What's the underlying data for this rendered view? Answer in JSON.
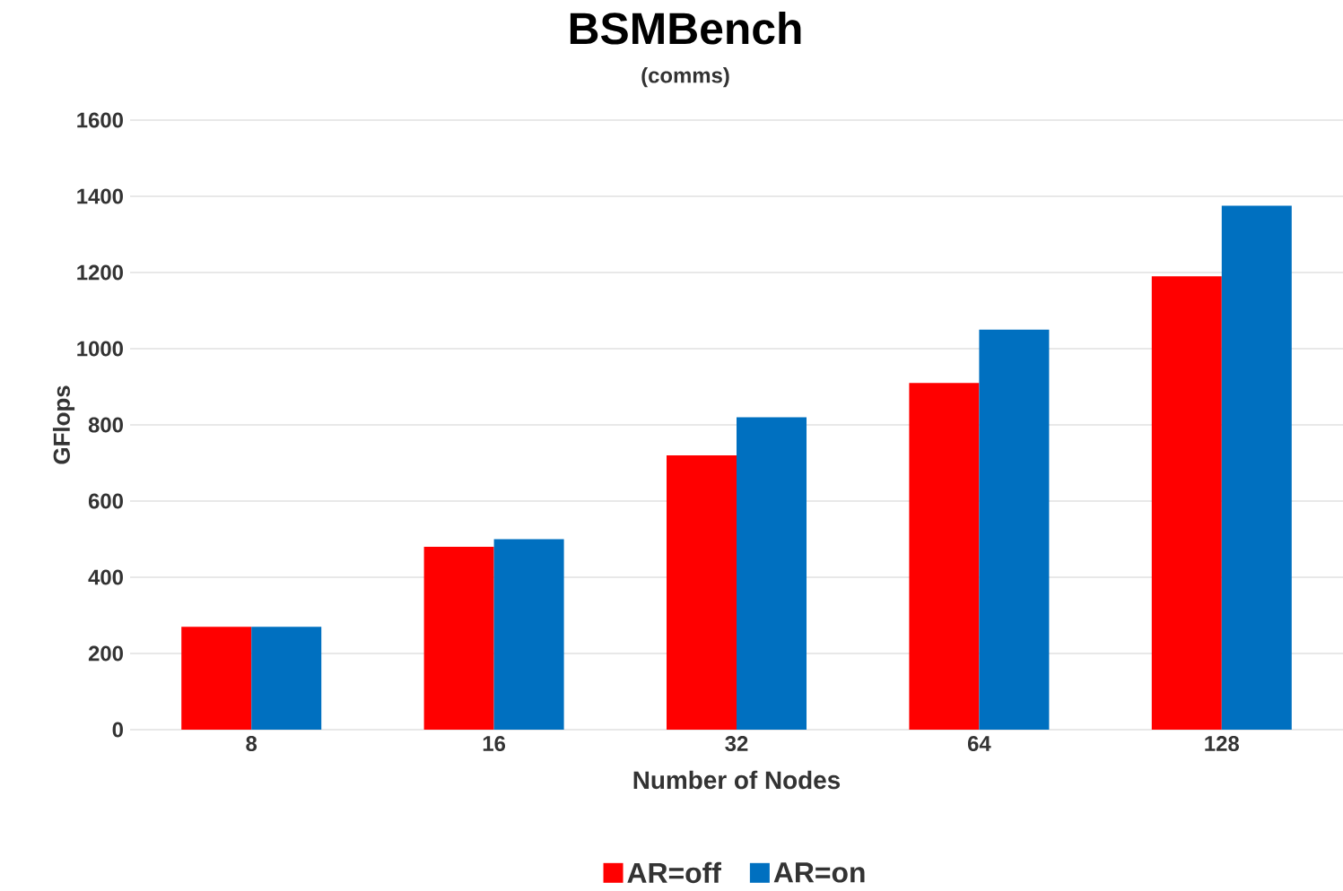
{
  "chart_data": {
    "type": "bar",
    "title": "BSMBench",
    "subtitle": "(comms)",
    "xlabel": "Number of Nodes",
    "ylabel": "GFlops",
    "categories": [
      "8",
      "16",
      "32",
      "64",
      "128"
    ],
    "series": [
      {
        "name": "AR=off",
        "color": "#ff0000",
        "values": [
          270,
          480,
          720,
          910,
          1190
        ]
      },
      {
        "name": "AR=on",
        "color": "#0070c0",
        "values": [
          270,
          500,
          820,
          1050,
          1375
        ]
      }
    ],
    "ylim": [
      0,
      1600
    ],
    "yticks": [
      0,
      200,
      400,
      600,
      800,
      1000,
      1200,
      1400,
      1600
    ],
    "grid": "y",
    "legend": "bottom"
  }
}
